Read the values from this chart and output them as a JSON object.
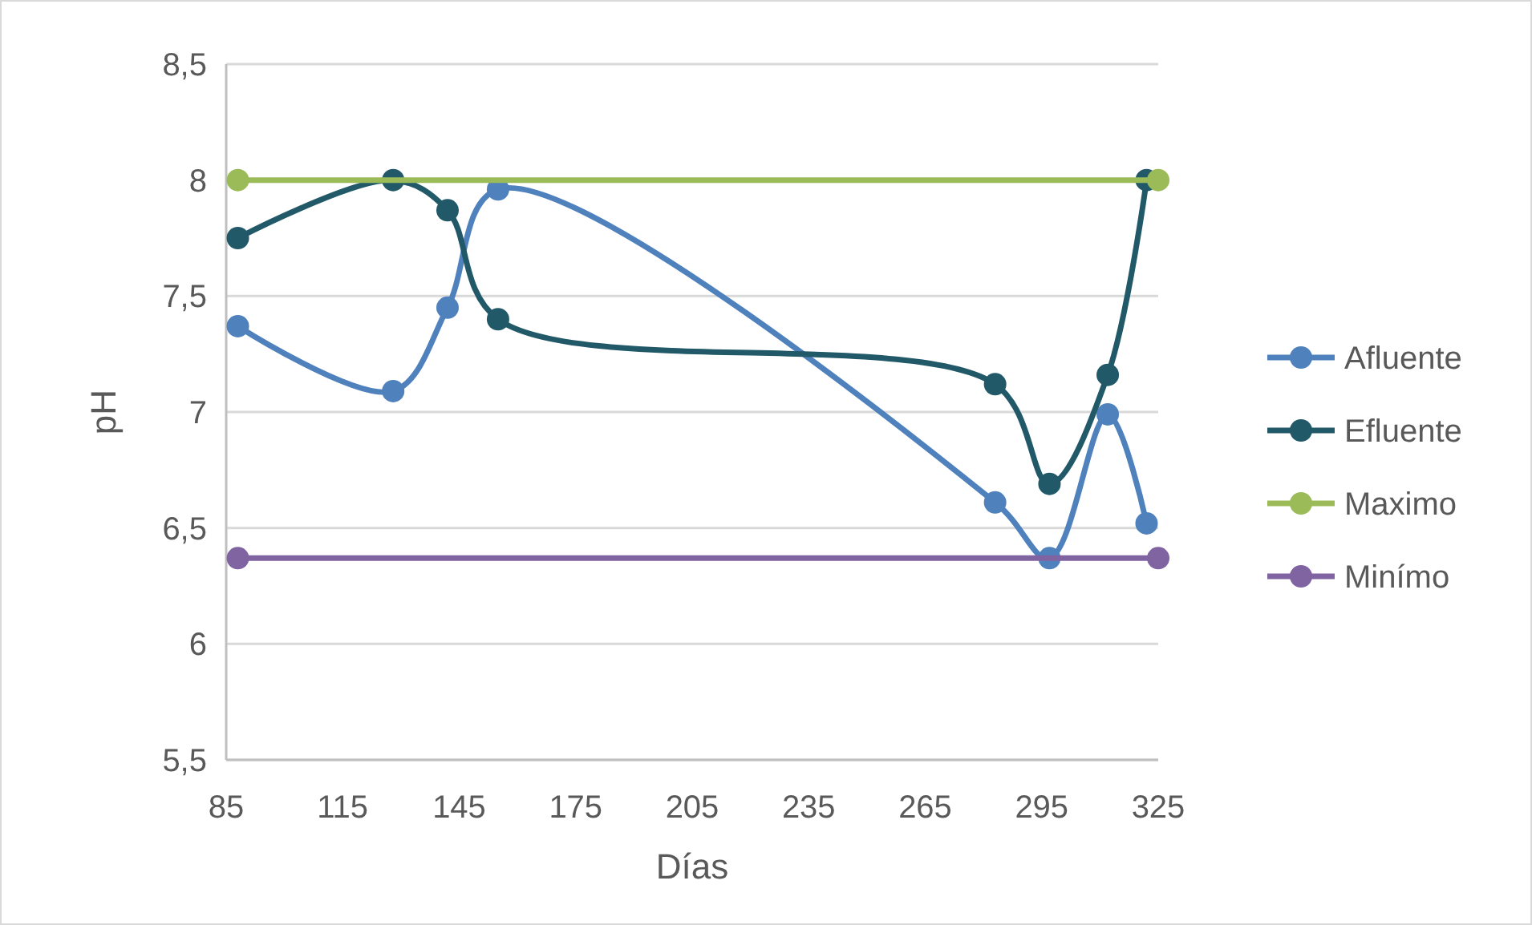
{
  "chart_data": {
    "type": "line",
    "xlabel": "Días",
    "ylabel": "pH",
    "xlim": [
      85,
      325
    ],
    "xticks": [
      85,
      115,
      145,
      175,
      205,
      235,
      265,
      295,
      325
    ],
    "ylim": [
      5.5,
      8.5
    ],
    "yticks": [
      {
        "value": 5.5,
        "label": "5,5"
      },
      6,
      {
        "value": 6.5,
        "label": "6,5"
      },
      7,
      {
        "value": 7.5,
        "label": "7,5"
      },
      8,
      {
        "value": 8.5,
        "label": "8,5"
      }
    ],
    "grid": "y",
    "legend": "right",
    "marker": "circle",
    "line_style": "solid",
    "series": [
      {
        "name": "Afluente",
        "color": "#4f81bd",
        "x": [
          88,
          128,
          142,
          155,
          283,
          297,
          312,
          322
        ],
        "values": [
          7.37,
          7.09,
          7.45,
          7.96,
          6.61,
          6.37,
          6.99,
          6.52
        ]
      },
      {
        "name": "Efluente",
        "color": "#215968",
        "x": [
          88,
          128,
          142,
          155,
          283,
          297,
          312,
          322
        ],
        "values": [
          7.75,
          8.0,
          7.87,
          7.4,
          7.12,
          6.69,
          7.16,
          8.0
        ]
      },
      {
        "name": "Maximo",
        "color": "#9bbb59",
        "x": [
          88,
          325
        ],
        "values": [
          8,
          8
        ]
      },
      {
        "name": "Minímo",
        "color": "#8064a2",
        "x": [
          88,
          325
        ],
        "values": [
          6.37,
          6.37
        ]
      }
    ]
  }
}
